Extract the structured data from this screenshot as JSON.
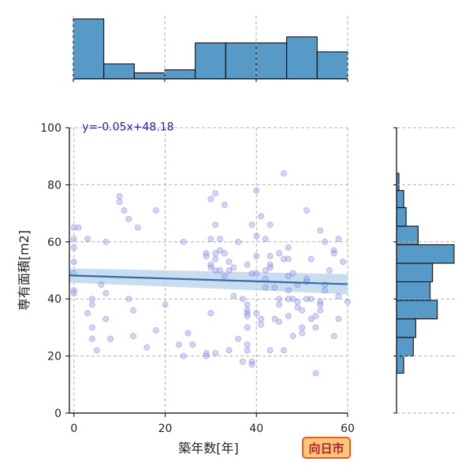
{
  "badge": {
    "text": "向日市",
    "fill": "#ffc580",
    "stroke": "#e8601c"
  },
  "chart_data": {
    "type": "scatter",
    "xlabel": "築年数[年]",
    "ylabel": "専有面積[m2]",
    "xlim": [
      -1,
      60
    ],
    "ylim": [
      0,
      100
    ],
    "x_ticks": [
      0,
      20,
      40,
      60
    ],
    "y_ticks": [
      0,
      20,
      40,
      60,
      80,
      100
    ],
    "grid": true,
    "regression": {
      "label": "y=-0.05x+48.18",
      "slope": -0.05,
      "intercept": 48.18,
      "band": 2.5
    },
    "points": [
      [
        0,
        65
      ],
      [
        0,
        61
      ],
      [
        0,
        58
      ],
      [
        0,
        53
      ],
      [
        0,
        49
      ],
      [
        0,
        43
      ],
      [
        0,
        42
      ],
      [
        1,
        65
      ],
      [
        3,
        61
      ],
      [
        3,
        35
      ],
      [
        4,
        40
      ],
      [
        4,
        38
      ],
      [
        4,
        30
      ],
      [
        4,
        26
      ],
      [
        5,
        22
      ],
      [
        6,
        45
      ],
      [
        7,
        60
      ],
      [
        7,
        42
      ],
      [
        7,
        33
      ],
      [
        8,
        26
      ],
      [
        10,
        76
      ],
      [
        10,
        74
      ],
      [
        11,
        71
      ],
      [
        12,
        68
      ],
      [
        12,
        40
      ],
      [
        13,
        36
      ],
      [
        13,
        27
      ],
      [
        14,
        65
      ],
      [
        16,
        23
      ],
      [
        18,
        71
      ],
      [
        18,
        29
      ],
      [
        20,
        38
      ],
      [
        23,
        24
      ],
      [
        24,
        60
      ],
      [
        24,
        20
      ],
      [
        25,
        28
      ],
      [
        26,
        24
      ],
      [
        29,
        56
      ],
      [
        29,
        55
      ],
      [
        29,
        21
      ],
      [
        29,
        20
      ],
      [
        30,
        75
      ],
      [
        30,
        61
      ],
      [
        30,
        52
      ],
      [
        30,
        51
      ],
      [
        30,
        35
      ],
      [
        31,
        77
      ],
      [
        31,
        66
      ],
      [
        31,
        56
      ],
      [
        31,
        54
      ],
      [
        31,
        50
      ],
      [
        31,
        21
      ],
      [
        32,
        61
      ],
      [
        32,
        57
      ],
      [
        32,
        50
      ],
      [
        33,
        73
      ],
      [
        33,
        56
      ],
      [
        33,
        48
      ],
      [
        34,
        53
      ],
      [
        34,
        50
      ],
      [
        34,
        22
      ],
      [
        35,
        51
      ],
      [
        35,
        41
      ],
      [
        36,
        60
      ],
      [
        36,
        26
      ],
      [
        37,
        40
      ],
      [
        37,
        18
      ],
      [
        38,
        38
      ],
      [
        38,
        36
      ],
      [
        38,
        35
      ],
      [
        38,
        34
      ],
      [
        38,
        30
      ],
      [
        38,
        24
      ],
      [
        38,
        22
      ],
      [
        38,
        52
      ],
      [
        39,
        49
      ],
      [
        39,
        18
      ],
      [
        39,
        17
      ],
      [
        39,
        66
      ],
      [
        40,
        78
      ],
      [
        40,
        62
      ],
      [
        40,
        55
      ],
      [
        40,
        49
      ],
      [
        40,
        35
      ],
      [
        41,
        33
      ],
      [
        41,
        31
      ],
      [
        41,
        69
      ],
      [
        42,
        61
      ],
      [
        42,
        50
      ],
      [
        42,
        47
      ],
      [
        42,
        44
      ],
      [
        43,
        66
      ],
      [
        43,
        55
      ],
      [
        43,
        52
      ],
      [
        43,
        51
      ],
      [
        43,
        22
      ],
      [
        44,
        44
      ],
      [
        44,
        33
      ],
      [
        45,
        56
      ],
      [
        45,
        40
      ],
      [
        45,
        38
      ],
      [
        45,
        32
      ],
      [
        46,
        84
      ],
      [
        46,
        54
      ],
      [
        46,
        22
      ],
      [
        47,
        58
      ],
      [
        47,
        54
      ],
      [
        47,
        48
      ],
      [
        47,
        43
      ],
      [
        47,
        40
      ],
      [
        47,
        34
      ],
      [
        48,
        49
      ],
      [
        48,
        40
      ],
      [
        48,
        27
      ],
      [
        49,
        45
      ],
      [
        49,
        39
      ],
      [
        49,
        37
      ],
      [
        50,
        36
      ],
      [
        50,
        30
      ],
      [
        50,
        28
      ],
      [
        51,
        71
      ],
      [
        51,
        47
      ],
      [
        51,
        46
      ],
      [
        51,
        40
      ],
      [
        52,
        54
      ],
      [
        52,
        40
      ],
      [
        52,
        33
      ],
      [
        53,
        34
      ],
      [
        53,
        30
      ],
      [
        53,
        14
      ],
      [
        54,
        64
      ],
      [
        54,
        39
      ],
      [
        54,
        38
      ],
      [
        54,
        36
      ],
      [
        55,
        45
      ],
      [
        55,
        43
      ],
      [
        55,
        60
      ],
      [
        56,
        50
      ],
      [
        57,
        57
      ],
      [
        57,
        56
      ],
      [
        57,
        27
      ],
      [
        58,
        61
      ],
      [
        58,
        41
      ],
      [
        58,
        33
      ],
      [
        59,
        53
      ],
      [
        60,
        39
      ]
    ],
    "x_hist": {
      "bin_edges": [
        0,
        6.67,
        13.33,
        20,
        26.67,
        33.33,
        40,
        46.67,
        53.33,
        60
      ],
      "counts": [
        20,
        5,
        2,
        3,
        12,
        12,
        12,
        14,
        9
      ]
    },
    "y_hist": {
      "bin_edges": [
        14,
        20,
        26.5,
        33,
        39.5,
        46,
        52.5,
        59,
        65.5,
        72,
        78,
        84
      ],
      "counts": [
        3,
        7,
        8,
        17,
        14,
        15,
        24,
        9,
        4,
        3,
        1
      ]
    },
    "colors": {
      "point_fill": "#9ea2e6",
      "point_edge": "#4b4fc9",
      "line": "#2b6fb0",
      "band": "#b8d2ea",
      "hist_fill": "#5799c7",
      "hist_edge": "#000000"
    }
  }
}
